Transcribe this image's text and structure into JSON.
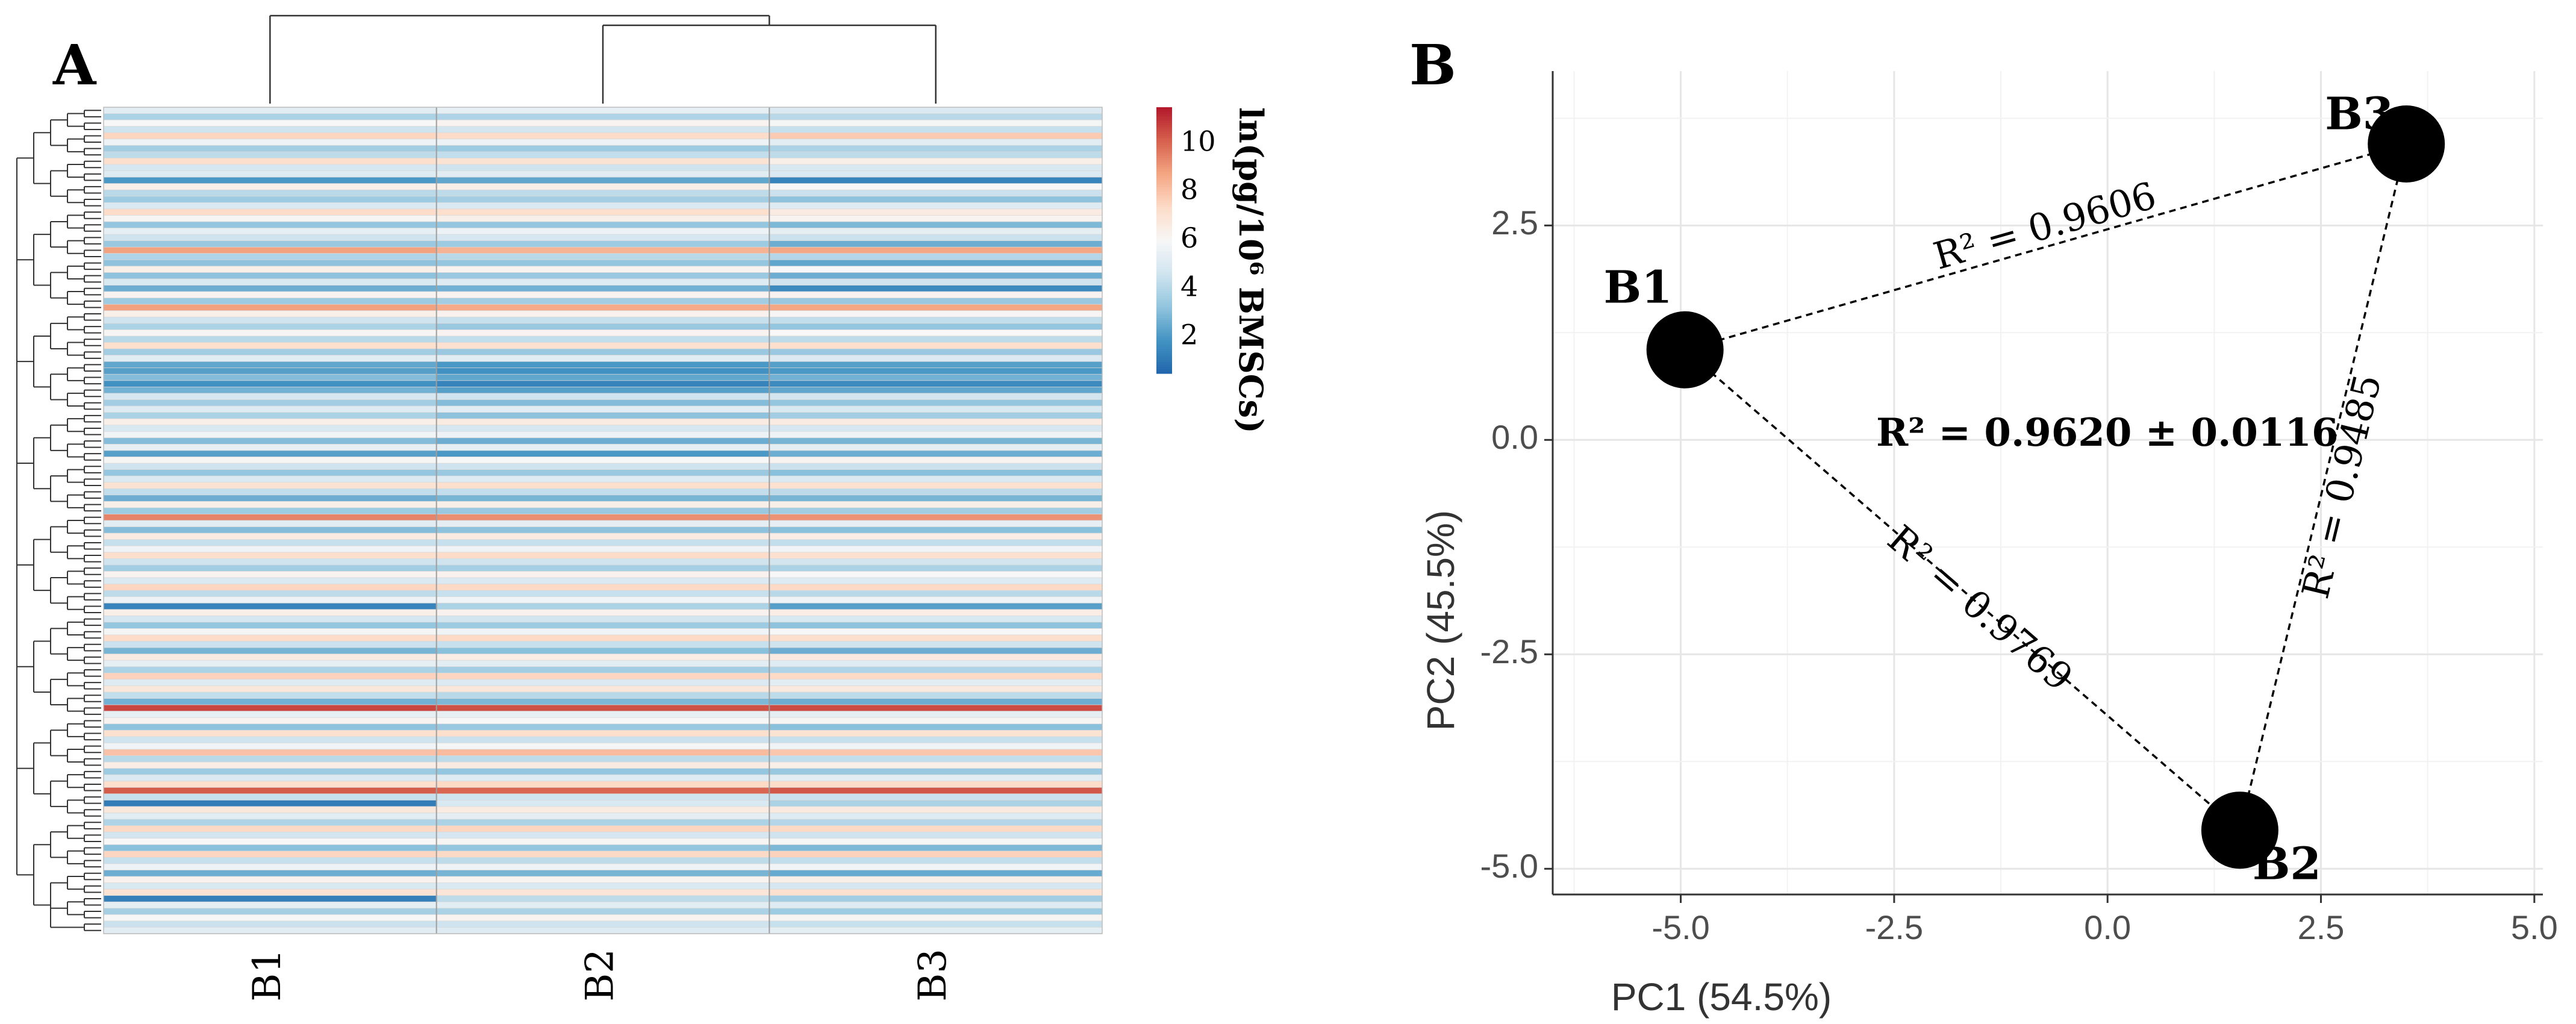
{
  "panels": {
    "a_label": "A",
    "b_label": "B"
  },
  "chart_data": [
    {
      "panel": "A",
      "type": "heatmap",
      "title": "",
      "columns": [
        "B1",
        "B2",
        "B3"
      ],
      "color_scale": {
        "label": "ln(pg/10⁶ BMSCs)",
        "ticks": [
          "2",
          "4",
          "6",
          "8",
          "10"
        ],
        "tick_values": [
          2,
          4,
          6,
          8,
          10
        ],
        "range": [
          0.5,
          11.5
        ],
        "stops": [
          "#2166ac",
          "#4393c3",
          "#92c5de",
          "#d1e5f0",
          "#f7f7f7",
          "#fddbc7",
          "#f4a582",
          "#d6604d",
          "#b2182b"
        ]
      },
      "column_dendrogram": "B1 joins cluster (B2, B3)",
      "rows": [
        [
          5.2,
          5.4,
          5.0
        ],
        [
          3.8,
          3.9,
          4.1
        ],
        [
          6.0,
          6.2,
          5.9
        ],
        [
          4.6,
          4.7,
          4.4
        ],
        [
          7.5,
          7.3,
          7.8
        ],
        [
          5.6,
          5.6,
          5.2
        ],
        [
          3.6,
          3.5,
          3.8
        ],
        [
          4.2,
          4.3,
          4.2
        ],
        [
          7.2,
          7.0,
          6.4
        ],
        [
          4.8,
          4.6,
          4.9
        ],
        [
          5.1,
          5.2,
          5.0
        ],
        [
          2.0,
          2.4,
          1.4
        ],
        [
          6.4,
          6.4,
          6.0
        ],
        [
          4.1,
          4.2,
          4.5
        ],
        [
          3.5,
          3.6,
          3.2
        ],
        [
          5.0,
          5.0,
          5.1
        ],
        [
          7.3,
          7.2,
          6.6
        ],
        [
          6.1,
          6.4,
          6.2
        ],
        [
          3.3,
          3.3,
          2.9
        ],
        [
          5.4,
          5.6,
          5.3
        ],
        [
          4.6,
          4.8,
          4.5
        ],
        [
          3.4,
          3.5,
          2.6
        ],
        [
          8.8,
          8.4,
          8.7
        ],
        [
          3.9,
          4.1,
          4.0
        ],
        [
          3.2,
          3.3,
          2.4
        ],
        [
          6.4,
          6.2,
          6.0
        ],
        [
          3.2,
          3.4,
          2.6
        ],
        [
          4.9,
          5.1,
          4.6
        ],
        [
          2.6,
          2.7,
          1.6
        ],
        [
          6.2,
          6.2,
          6.2
        ],
        [
          3.5,
          3.6,
          3.4
        ],
        [
          8.8,
          8.6,
          8.7
        ],
        [
          6.4,
          6.3,
          6.1
        ],
        [
          4.6,
          4.4,
          4.3
        ],
        [
          3.8,
          3.4,
          3.3
        ],
        [
          6.1,
          6.2,
          6.0
        ],
        [
          4.1,
          4.3,
          4.2
        ],
        [
          7.2,
          7.1,
          7.2
        ],
        [
          3.6,
          3.4,
          3.4
        ],
        [
          5.2,
          5.2,
          5.0
        ],
        [
          2.4,
          2.0,
          2.2
        ],
        [
          2.2,
          1.8,
          2.0
        ],
        [
          3.0,
          2.4,
          2.7
        ],
        [
          1.8,
          1.4,
          1.6
        ],
        [
          2.7,
          2.2,
          2.4
        ],
        [
          4.8,
          4.6,
          4.7
        ],
        [
          3.6,
          3.0,
          3.3
        ],
        [
          5.1,
          5.2,
          4.9
        ],
        [
          3.8,
          3.2,
          3.6
        ],
        [
          6.4,
          6.6,
          6.6
        ],
        [
          4.9,
          4.8,
          4.8
        ],
        [
          5.8,
          5.6,
          5.7
        ],
        [
          3.0,
          2.6,
          2.8
        ],
        [
          5.4,
          5.4,
          5.3
        ],
        [
          2.2,
          2.0,
          2.6
        ],
        [
          6.1,
          6.0,
          6.2
        ],
        [
          4.6,
          4.6,
          4.5
        ],
        [
          3.3,
          3.4,
          3.1
        ],
        [
          5.0,
          5.1,
          5.0
        ],
        [
          7.0,
          7.2,
          7.1
        ],
        [
          4.3,
          4.3,
          4.2
        ],
        [
          2.6,
          2.8,
          2.8
        ],
        [
          6.4,
          6.4,
          6.4
        ],
        [
          3.5,
          3.4,
          3.6
        ],
        [
          9.4,
          9.2,
          9.1
        ],
        [
          5.2,
          5.3,
          5.4
        ],
        [
          3.0,
          3.2,
          3.1
        ],
        [
          6.6,
          6.6,
          6.5
        ],
        [
          4.4,
          4.4,
          4.3
        ],
        [
          5.7,
          5.7,
          5.8
        ],
        [
          7.2,
          7.3,
          7.1
        ],
        [
          4.6,
          4.6,
          4.7
        ],
        [
          3.6,
          3.7,
          3.8
        ],
        [
          6.2,
          6.3,
          6.0
        ],
        [
          5.0,
          5.0,
          5.1
        ],
        [
          7.5,
          7.4,
          7.4
        ],
        [
          4.2,
          4.4,
          4.1
        ],
        [
          5.6,
          5.8,
          5.7
        ],
        [
          1.4,
          3.8,
          2.2
        ],
        [
          6.4,
          6.3,
          6.5
        ],
        [
          4.8,
          4.7,
          4.9
        ],
        [
          3.3,
          3.5,
          3.2
        ],
        [
          5.9,
          5.8,
          6.0
        ],
        [
          7.3,
          7.4,
          7.2
        ],
        [
          4.5,
          4.4,
          4.6
        ],
        [
          2.8,
          3.1,
          2.6
        ],
        [
          6.6,
          6.5,
          6.7
        ],
        [
          5.3,
          5.2,
          5.1
        ],
        [
          3.8,
          3.6,
          3.9
        ],
        [
          7.6,
          7.5,
          7.4
        ],
        [
          5.1,
          5.0,
          5.2
        ],
        [
          6.8,
          6.8,
          6.7
        ],
        [
          4.3,
          4.1,
          4.2
        ],
        [
          2.7,
          2.9,
          2.6
        ],
        [
          10.6,
          10.4,
          10.5
        ],
        [
          5.4,
          5.5,
          5.3
        ],
        [
          6.2,
          6.0,
          6.1
        ],
        [
          3.2,
          3.4,
          3.1
        ],
        [
          7.1,
          7.2,
          7.0
        ],
        [
          4.6,
          4.5,
          4.4
        ],
        [
          5.8,
          5.9,
          5.7
        ],
        [
          8.0,
          8.2,
          7.9
        ],
        [
          4.1,
          4.2,
          4.3
        ],
        [
          6.5,
          6.6,
          6.4
        ],
        [
          3.5,
          3.3,
          3.4
        ],
        [
          5.0,
          5.1,
          5.2
        ],
        [
          7.2,
          7.4,
          7.3
        ],
        [
          10.2,
          10.0,
          10.3
        ],
        [
          4.4,
          4.6,
          4.5
        ],
        [
          1.2,
          4.9,
          3.8
        ],
        [
          6.8,
          6.6,
          6.7
        ],
        [
          5.2,
          5.3,
          5.1
        ],
        [
          3.9,
          3.8,
          4.0
        ],
        [
          7.4,
          7.5,
          7.4
        ],
        [
          4.7,
          4.8,
          4.6
        ],
        [
          6.0,
          6.1,
          5.9
        ],
        [
          3.1,
          3.3,
          2.9
        ],
        [
          7.5,
          7.4,
          7.6
        ],
        [
          4.4,
          4.2,
          4.3
        ],
        [
          5.6,
          5.7,
          5.8
        ],
        [
          2.6,
          2.8,
          2.5
        ],
        [
          6.3,
          6.2,
          6.4
        ],
        [
          4.9,
          5.0,
          4.8
        ],
        [
          7.0,
          6.9,
          7.1
        ],
        [
          1.3,
          4.2,
          3.6
        ],
        [
          5.3,
          5.2,
          5.1
        ],
        [
          3.7,
          3.8,
          3.5
        ],
        [
          6.0,
          6.2,
          6.1
        ],
        [
          4.5,
          4.6,
          4.4
        ],
        [
          5.2,
          5.1,
          5.3
        ]
      ],
      "row_tree": [
        [
          [
            [
              [
                0,
                1
              ],
              [
                2,
                3
              ]
            ],
            [
              [
                4,
                5
              ],
              [
                6,
                7
              ]
            ]
          ],
          [
            [
              [
                8,
                9
              ],
              [
                10,
                11
              ]
            ],
            [
              [
                12,
                13
              ],
              [
                14,
                15
              ]
            ]
          ]
        ],
        [
          [
            [
              [
                16,
                17
              ],
              [
                18,
                19
              ]
            ],
            [
              [
                20,
                21
              ],
              [
                22,
                23
              ]
            ]
          ],
          [
            [
              [
                24,
                25
              ],
              [
                26,
                27
              ]
            ],
            [
              [
                28,
                29
              ],
              [
                30,
                31
              ]
            ]
          ]
        ],
        [
          [
            [
              [
                32,
                33
              ],
              [
                34,
                35
              ]
            ],
            [
              [
                36,
                37
              ],
              [
                38,
                39
              ]
            ]
          ],
          [
            [
              [
                40,
                41
              ],
              [
                42,
                43
              ]
            ],
            [
              [
                44,
                45
              ],
              [
                46,
                47
              ]
            ]
          ]
        ],
        [
          [
            [
              [
                48,
                49
              ],
              [
                50,
                51
              ]
            ],
            [
              [
                52,
                53
              ],
              [
                54,
                55
              ]
            ]
          ],
          [
            [
              [
                56,
                57
              ],
              [
                58,
                59
              ]
            ],
            [
              [
                60,
                61
              ],
              [
                62,
                63
              ]
            ]
          ]
        ],
        [
          [
            [
              [
                64,
                65
              ],
              [
                66,
                67
              ]
            ],
            [
              [
                68,
                69
              ],
              [
                70,
                71
              ]
            ]
          ],
          [
            [
              [
                72,
                73
              ],
              [
                74,
                75
              ]
            ],
            [
              [
                76,
                77
              ],
              [
                78,
                79
              ]
            ]
          ]
        ],
        [
          [
            [
              [
                80,
                81
              ],
              [
                82,
                83
              ]
            ],
            [
              [
                84,
                85
              ],
              [
                86,
                87
              ]
            ]
          ],
          [
            [
              [
                88,
                89
              ],
              [
                90,
                91
              ]
            ],
            [
              [
                92,
                93
              ],
              [
                94,
                95
              ]
            ]
          ]
        ],
        [
          [
            [
              [
                96,
                97
              ],
              [
                98,
                99
              ]
            ],
            [
              [
                100,
                101
              ],
              [
                102,
                103
              ]
            ]
          ],
          [
            [
              [
                104,
                105
              ],
              [
                106,
                107
              ]
            ],
            [
              [
                108,
                109
              ],
              [
                110,
                111
              ]
            ]
          ]
        ],
        [
          [
            [
              [
                112,
                113
              ],
              [
                114,
                115
              ]
            ],
            [
              [
                116,
                117
              ],
              [
                118,
                119
              ]
            ]
          ],
          [
            [
              [
                120,
                121
              ],
              [
                122,
                123
              ]
            ],
            [
              [
                124,
                125
              ],
              [
                126,
                127
              ]
            ],
            [
              [
                128,
                129
              ]
            ]
          ]
        ]
      ]
    },
    {
      "panel": "B",
      "type": "scatter",
      "title": "",
      "xlabel": "PC1 (54.5%)",
      "ylabel": "PC2 (45.5%)",
      "xlim": [
        -6.5,
        5.1
      ],
      "ylim": [
        -5.3,
        4.3
      ],
      "xticks": [
        -5.0,
        -2.5,
        0.0,
        2.5,
        5.0
      ],
      "xtick_labels": [
        "-5.0",
        "-2.5",
        "0.0",
        "2.5",
        "5.0"
      ],
      "yticks": [
        -5.0,
        -2.5,
        0.0,
        2.5
      ],
      "ytick_labels": [
        "-5.0",
        "-2.5",
        "0.0",
        "2.5"
      ],
      "grid": true,
      "points": [
        {
          "label": "B1",
          "x": -4.95,
          "y": 1.05
        },
        {
          "label": "B2",
          "x": 1.55,
          "y": -4.55
        },
        {
          "label": "B3",
          "x": 3.5,
          "y": 3.45
        }
      ],
      "links": [
        {
          "from": "B1",
          "to": "B3",
          "label": "R² = 0.9606"
        },
        {
          "from": "B1",
          "to": "B2",
          "label": "R² = 0.9769"
        },
        {
          "from": "B2",
          "to": "B3",
          "label": "R² = 0.9485"
        }
      ],
      "annotation": "R² = 0.9620 ± 0.0116"
    }
  ]
}
